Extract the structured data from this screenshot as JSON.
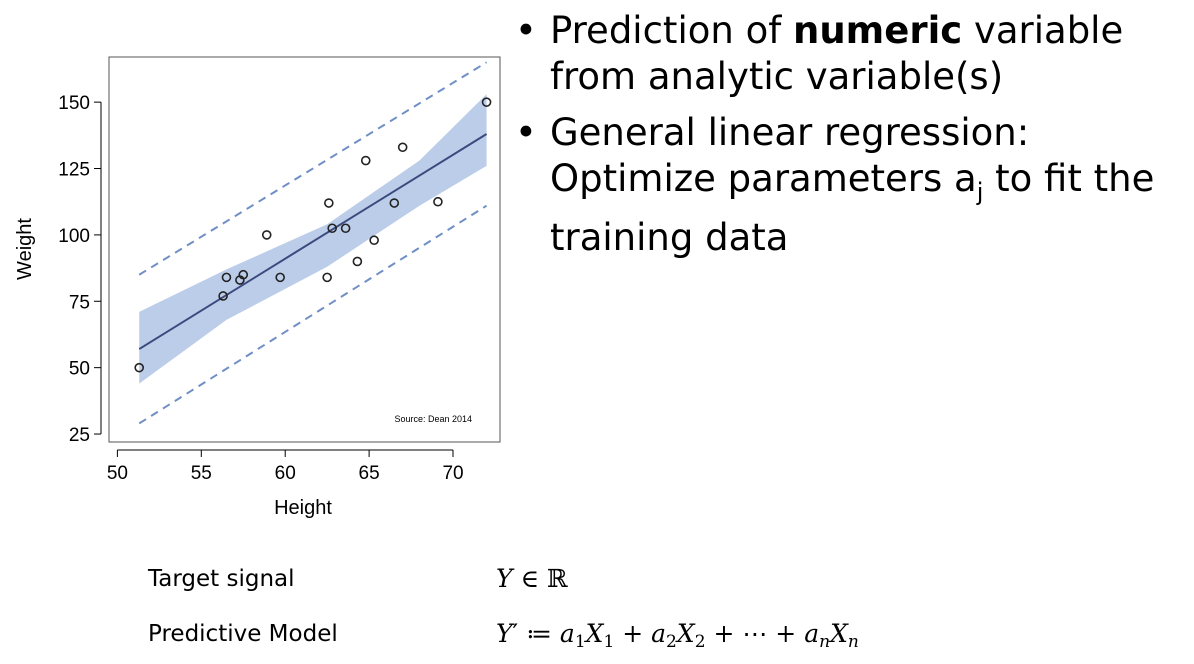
{
  "chart_data": {
    "type": "scatter",
    "xlabel": "Height",
    "ylabel": "Weight",
    "xlim": [
      49.5,
      72.8
    ],
    "ylim": [
      22,
      167
    ],
    "xticks": [
      50,
      55,
      60,
      65,
      70
    ],
    "yticks": [
      25,
      50,
      75,
      100,
      125,
      150
    ],
    "grid": false,
    "points": [
      {
        "x": 51.3,
        "y": 50
      },
      {
        "x": 56.3,
        "y": 77
      },
      {
        "x": 56.5,
        "y": 84
      },
      {
        "x": 57.3,
        "y": 83
      },
      {
        "x": 57.5,
        "y": 85
      },
      {
        "x": 58.9,
        "y": 100
      },
      {
        "x": 59.7,
        "y": 84
      },
      {
        "x": 62.5,
        "y": 84
      },
      {
        "x": 62.6,
        "y": 112
      },
      {
        "x": 62.8,
        "y": 102.5
      },
      {
        "x": 63.6,
        "y": 102.5
      },
      {
        "x": 64.3,
        "y": 90
      },
      {
        "x": 64.8,
        "y": 128
      },
      {
        "x": 65.3,
        "y": 98
      },
      {
        "x": 66.5,
        "y": 112
      },
      {
        "x": 67.0,
        "y": 133
      },
      {
        "x": 69.1,
        "y": 112.5
      },
      {
        "x": 72.0,
        "y": 150
      }
    ],
    "fit_line": {
      "x": [
        51.3,
        72.0
      ],
      "y": [
        57,
        138
      ]
    },
    "confidence_band": {
      "x": [
        51.3,
        56.5,
        62.5,
        68.0,
        72.0
      ],
      "upper": [
        71,
        87,
        104,
        128,
        153
      ],
      "lower": [
        44,
        68,
        88,
        111,
        126
      ]
    },
    "prediction_bounds": {
      "x": [
        51.3,
        72.0
      ],
      "upper": [
        85,
        165
      ],
      "lower": [
        29,
        111
      ]
    },
    "colors": {
      "points": "#222222",
      "fit_line": "#3b4a7e",
      "band": "#bccde9",
      "dashed": "#6f8fc5"
    },
    "annotation": "Source: Dean 2014"
  },
  "bullets": [
    {
      "before": "Prediction of ",
      "bold": "numeric",
      "after": " variable from analytic variable(s)"
    },
    {
      "before": "General linear regression: Optimize parameters a",
      "sub": "j",
      "after": " to fit the training data"
    }
  ],
  "formulas": {
    "target_label": "Target signal",
    "model_label": "Predictive Model"
  }
}
